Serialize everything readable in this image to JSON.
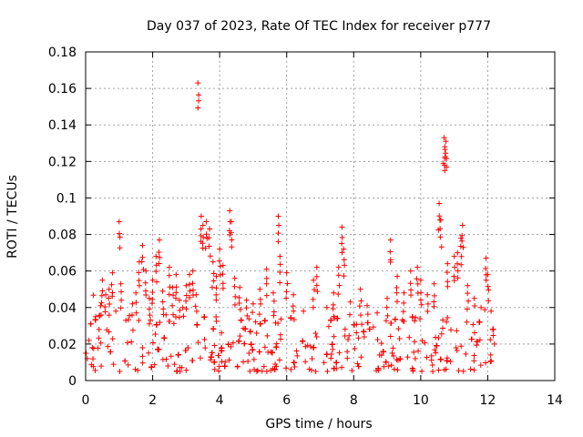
{
  "chart_data": {
    "type": "scatter",
    "title": "Day 037 of 2023, Rate Of TEC Index for receiver p777",
    "xlabel": "GPS time / hours",
    "ylabel": "ROTI / TECUs",
    "xlim": [
      0,
      14
    ],
    "ylim": [
      0,
      0.18
    ],
    "xticks": [
      0,
      2,
      4,
      6,
      8,
      10,
      12,
      14
    ],
    "yticks": [
      0,
      0.02,
      0.04,
      0.06,
      0.08,
      0.1,
      0.12,
      0.14,
      0.16,
      0.18
    ],
    "xtick_labels": [
      "0",
      "2",
      "4",
      "6",
      "8",
      "10",
      "12",
      "14"
    ],
    "ytick_labels": [
      "0",
      "0.02",
      "0.04",
      "0.06",
      "0.08",
      "0.1",
      "0.12",
      "0.14",
      "0.16",
      "0.18"
    ],
    "grid": true,
    "marker": "plus",
    "color": "#ff0000",
    "data_range_x": [
      0,
      12.2
    ],
    "series": [
      {
        "name": "ROTI",
        "points": [
          [
            0.05,
            0.012
          ],
          [
            0.1,
            0.022
          ],
          [
            0.15,
            0.031
          ],
          [
            0.2,
            0.018
          ],
          [
            0.3,
            0.035
          ],
          [
            0.4,
            0.028
          ],
          [
            0.45,
            0.041
          ],
          [
            0.5,
            0.055
          ],
          [
            0.6,
            0.047
          ],
          [
            0.7,
            0.05
          ],
          [
            0.8,
            0.059
          ],
          [
            0.9,
            0.038
          ],
          [
            1.0,
            0.087
          ],
          [
            1.05,
            0.053
          ],
          [
            1.2,
            0.033
          ],
          [
            1.4,
            0.042
          ],
          [
            1.5,
            0.048
          ],
          [
            1.6,
            0.065
          ],
          [
            1.7,
            0.074
          ],
          [
            1.8,
            0.06
          ],
          [
            1.9,
            0.045
          ],
          [
            2.0,
            0.055
          ],
          [
            2.1,
            0.068
          ],
          [
            2.2,
            0.077
          ],
          [
            2.3,
            0.049
          ],
          [
            2.4,
            0.036
          ],
          [
            2.5,
            0.062
          ],
          [
            2.6,
            0.051
          ],
          [
            2.7,
            0.058
          ],
          [
            2.8,
            0.044
          ],
          [
            2.9,
            0.04
          ],
          [
            3.0,
            0.052
          ],
          [
            3.1,
            0.058
          ],
          [
            3.2,
            0.06
          ],
          [
            3.3,
            0.047
          ],
          [
            3.35,
            0.163
          ],
          [
            3.45,
            0.09
          ],
          [
            3.5,
            0.085
          ],
          [
            3.6,
            0.087
          ],
          [
            3.7,
            0.083
          ],
          [
            3.8,
            0.065
          ],
          [
            3.9,
            0.057
          ],
          [
            4.0,
            0.072
          ],
          [
            4.1,
            0.063
          ],
          [
            4.3,
            0.093
          ],
          [
            4.35,
            0.087
          ],
          [
            4.45,
            0.056
          ],
          [
            4.6,
            0.051
          ],
          [
            4.8,
            0.044
          ],
          [
            5.0,
            0.042
          ],
          [
            5.2,
            0.05
          ],
          [
            5.4,
            0.061
          ],
          [
            5.6,
            0.048
          ],
          [
            5.75,
            0.09
          ],
          [
            5.8,
            0.068
          ],
          [
            6.0,
            0.059
          ],
          [
            6.2,
            0.047
          ],
          [
            6.5,
            0.038
          ],
          [
            6.8,
            0.055
          ],
          [
            6.9,
            0.062
          ],
          [
            7.2,
            0.04
          ],
          [
            7.4,
            0.048
          ],
          [
            7.55,
            0.062
          ],
          [
            7.65,
            0.084
          ],
          [
            7.7,
            0.072
          ],
          [
            7.9,
            0.043
          ],
          [
            8.2,
            0.05
          ],
          [
            8.4,
            0.041
          ],
          [
            8.7,
            0.037
          ],
          [
            9.0,
            0.045
          ],
          [
            9.1,
            0.077
          ],
          [
            9.3,
            0.057
          ],
          [
            9.5,
            0.048
          ],
          [
            9.7,
            0.06
          ],
          [
            9.9,
            0.062
          ],
          [
            10.0,
            0.055
          ],
          [
            10.2,
            0.047
          ],
          [
            10.4,
            0.053
          ],
          [
            10.55,
            0.097
          ],
          [
            10.6,
            0.088
          ],
          [
            10.7,
            0.133
          ],
          [
            10.72,
            0.128
          ],
          [
            10.75,
            0.131
          ],
          [
            10.8,
            0.064
          ],
          [
            11.0,
            0.068
          ],
          [
            11.1,
            0.07
          ],
          [
            11.2,
            0.078
          ],
          [
            11.25,
            0.085
          ],
          [
            11.4,
            0.052
          ],
          [
            11.6,
            0.045
          ],
          [
            11.8,
            0.04
          ],
          [
            11.95,
            0.067
          ],
          [
            12.0,
            0.058
          ],
          [
            12.1,
            0.038
          ],
          [
            12.2,
            0.02
          ]
        ],
        "dense_band": {
          "x_range": [
            0,
            12.2
          ],
          "typical_low": 0.005,
          "typical_high": 0.035
        }
      }
    ]
  }
}
